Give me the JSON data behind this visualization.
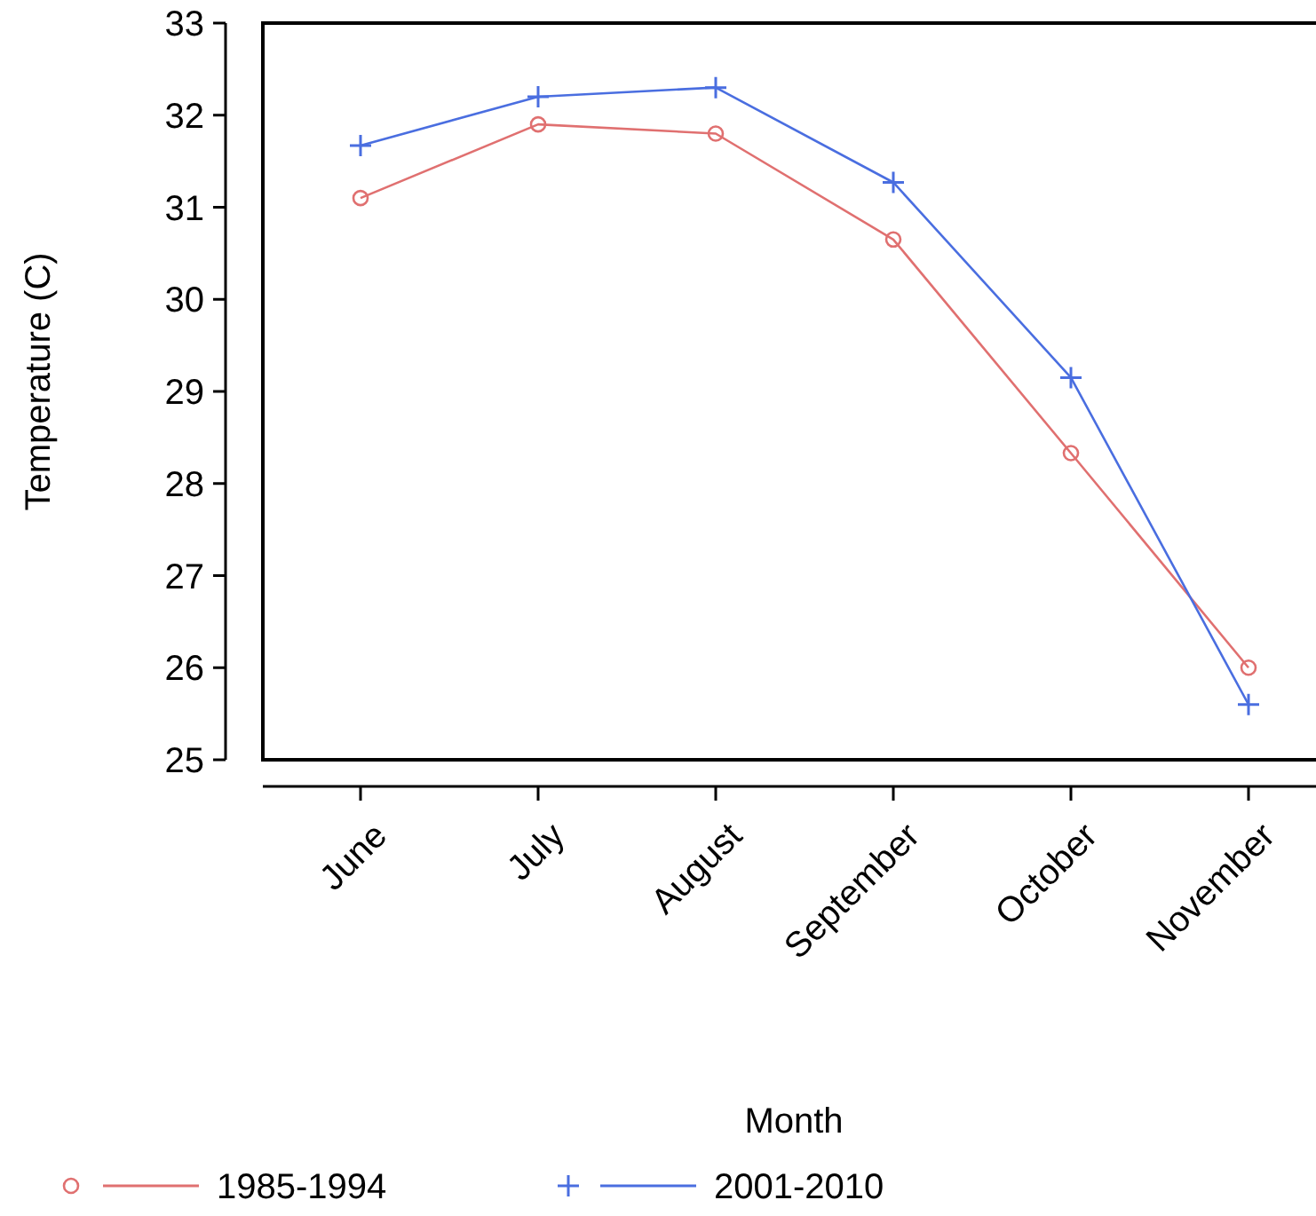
{
  "chart_data": {
    "type": "line",
    "xlabel": "Month",
    "ylabel": "Temperature (C)",
    "categories": [
      "June",
      "July",
      "August",
      "September",
      "October",
      "November"
    ],
    "ylim": [
      25,
      33
    ],
    "yticks": [
      25,
      26,
      27,
      28,
      29,
      30,
      31,
      32,
      33
    ],
    "grid": false,
    "legend": "bottom",
    "series": [
      {
        "name": "1985-1994",
        "color": "#e07070",
        "marker": "circle",
        "values": [
          31.1,
          31.9,
          31.8,
          30.65,
          28.33,
          26.0
        ]
      },
      {
        "name": "2001-2010",
        "color": "#4a6ee0",
        "marker": "cross",
        "values": [
          31.67,
          32.2,
          32.3,
          31.27,
          29.15,
          25.6
        ]
      }
    ]
  }
}
